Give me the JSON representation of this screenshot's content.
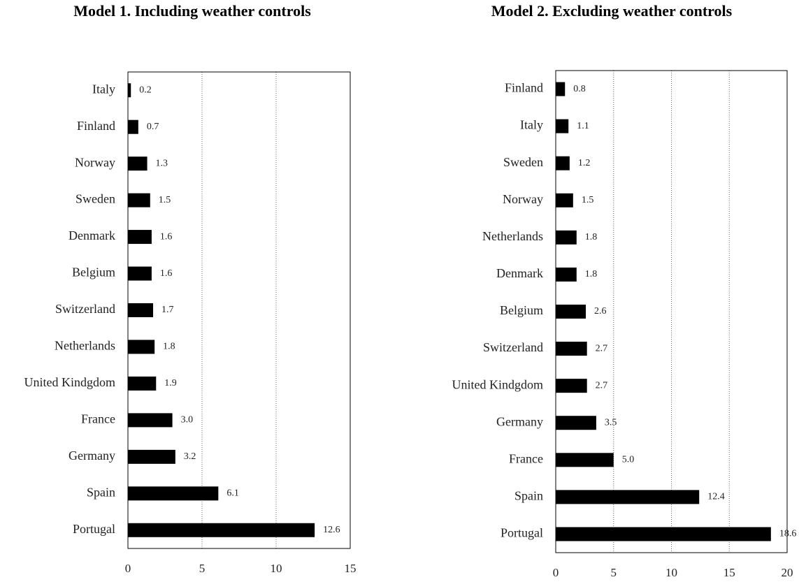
{
  "chart_data": [
    {
      "type": "hbar",
      "title": "Model 1. Including weather controls",
      "categories": [
        "Italy",
        "Finland",
        "Norway",
        "Sweden",
        "Denmark",
        "Belgium",
        "Switzerland",
        "Netherlands",
        "United Kindgdom",
        "France",
        "Germany",
        "Spain",
        "Portugal"
      ],
      "values": [
        0.2,
        0.7,
        1.3,
        1.5,
        1.6,
        1.6,
        1.7,
        1.8,
        1.9,
        3.0,
        3.2,
        6.1,
        12.6
      ],
      "value_labels": [
        "0.2",
        "0.7",
        "1.3",
        "1.5",
        "1.6",
        "1.6",
        "1.7",
        "1.8",
        "1.9",
        "3.0",
        "3.2",
        "6.1",
        "12.6"
      ],
      "color": "#000000",
      "xlim": [
        0,
        15
      ],
      "xticks": [
        0,
        5,
        10,
        15
      ],
      "grid": true
    },
    {
      "type": "hbar",
      "title": "Model 2. Excluding weather controls",
      "categories": [
        "Finland",
        "Italy",
        "Sweden",
        "Norway",
        "Netherlands",
        "Denmark",
        "Belgium",
        "Switzerland",
        "United Kindgdom",
        "Germany",
        "France",
        "Spain",
        "Portugal"
      ],
      "values": [
        0.8,
        1.1,
        1.2,
        1.5,
        1.8,
        1.8,
        2.6,
        2.7,
        2.7,
        3.5,
        5.0,
        12.4,
        18.6
      ],
      "value_labels": [
        "0.8",
        "1.1",
        "1.2",
        "1.5",
        "1.8",
        "1.8",
        "2.6",
        "2.7",
        "2.7",
        "3.5",
        "5.0",
        "12.4",
        "18.6"
      ],
      "color": "#000000",
      "xlim": [
        0,
        20
      ],
      "xticks": [
        0,
        5,
        10,
        15,
        20
      ],
      "grid": true
    }
  ]
}
